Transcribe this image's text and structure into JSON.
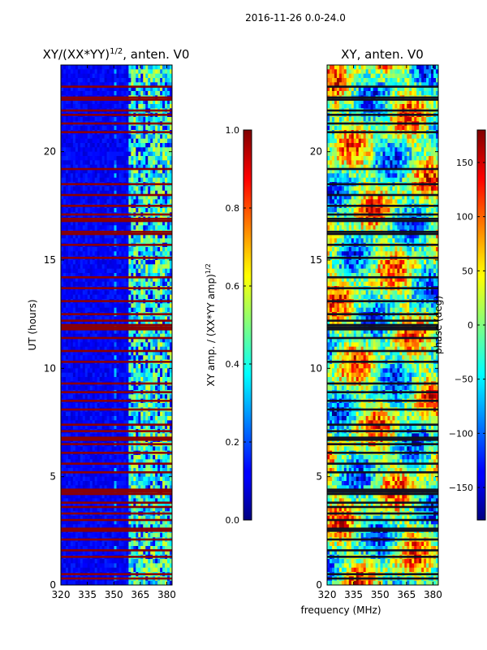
{
  "figure": {
    "suptitle": "2016-11-26 0.0-24.0",
    "shared_xlabel": "frequency (MHz)"
  },
  "chart_data": [
    {
      "type": "heatmap",
      "title": "XY/(XX*YY)^{1/2}, anten. V0",
      "title_main": "XY/(XX*YY)",
      "title_sup": "1/2",
      "title_suffix": ", anten. V0",
      "xlabel": "frequency (MHz)",
      "ylabel": "UT (hours)",
      "xlim": [
        320,
        383
      ],
      "ylim": [
        0,
        24
      ],
      "xticks": [
        320,
        335,
        350,
        365,
        380
      ],
      "yticks": [
        0,
        5,
        10,
        15,
        20
      ],
      "colorbar": {
        "label": "XY amp. / (XX*YY amp)^{1/2}",
        "label_main": "XY amp. / (XX*YY amp)",
        "label_sup": "1/2",
        "range": [
          0.0,
          1.0
        ],
        "ticks": [
          "0.0",
          "0.2",
          "0.4",
          "0.6",
          "0.8",
          "1.0"
        ],
        "tick_values": [
          0.0,
          0.2,
          0.4,
          0.6,
          0.8,
          1.0
        ],
        "colormap": "jet"
      },
      "flagged_time_hours": [
        0.3,
        0.5,
        1.3,
        1.6,
        2.1,
        2.5,
        2.6,
        3.0,
        3.3,
        3.6,
        3.8,
        4.2,
        4.3,
        4.4,
        5.2,
        5.6,
        6.1,
        6.5,
        6.7,
        6.8,
        7.1,
        7.4,
        8.1,
        8.5,
        8.9,
        9.3,
        10.3,
        10.8,
        11.4,
        11.8,
        11.9,
        12.0,
        12.2,
        12.5,
        13.1,
        13.7,
        14.2,
        15.1,
        15.7,
        16.2,
        16.3,
        16.8,
        16.9,
        17.1,
        17.5,
        18.0,
        18.5,
        19.2,
        20.9,
        21.3,
        21.7,
        21.9,
        22.4,
        22.5,
        23.0
      ]
    },
    {
      "type": "heatmap",
      "title": "XY, anten. V0",
      "xlabel": "frequency (MHz)",
      "ylabel": "",
      "xlim": [
        320,
        383
      ],
      "ylim": [
        0,
        24
      ],
      "xticks": [
        320,
        335,
        350,
        365,
        380
      ],
      "yticks": [
        0,
        5,
        10,
        15,
        20
      ],
      "colorbar": {
        "label": "phase (deg)",
        "range": [
          -180,
          180
        ],
        "ticks": [
          "150",
          "100",
          "50",
          "0",
          "−50",
          "−100",
          "−150"
        ],
        "tick_values": [
          150,
          100,
          50,
          0,
          -50,
          -100,
          -150
        ],
        "colormap": "jet"
      },
      "flagged_time_hours": [
        0.3,
        0.5,
        1.3,
        1.6,
        2.1,
        2.5,
        2.6,
        3.0,
        3.3,
        3.6,
        3.8,
        4.2,
        4.3,
        4.4,
        5.2,
        5.6,
        6.1,
        6.5,
        6.7,
        6.8,
        7.1,
        7.4,
        8.1,
        8.5,
        8.9,
        9.3,
        10.3,
        10.8,
        11.4,
        11.8,
        11.9,
        12.0,
        12.2,
        12.5,
        13.1,
        13.7,
        14.2,
        15.1,
        15.7,
        16.2,
        16.3,
        16.8,
        16.9,
        17.1,
        17.5,
        18.0,
        18.5,
        19.2,
        20.9,
        21.3,
        21.7,
        21.9,
        22.4,
        22.5,
        23.0
      ]
    }
  ]
}
